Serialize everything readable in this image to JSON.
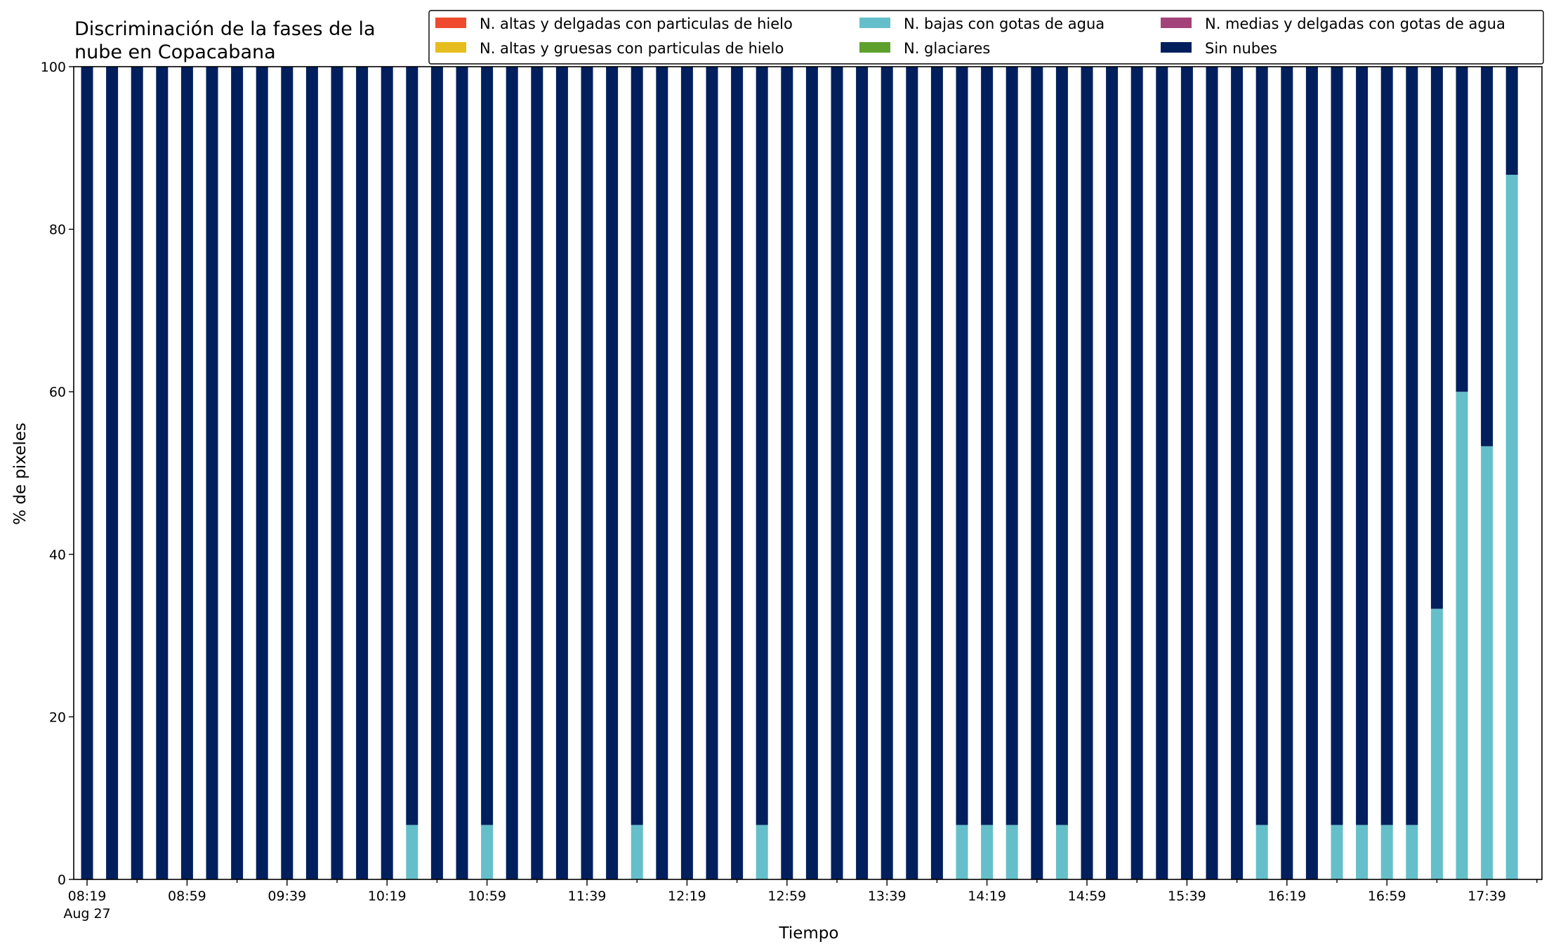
{
  "chart_data": {
    "type": "bar",
    "stacked": true,
    "title_lines": [
      "Discriminación de la fases de la",
      "nube en Copacabana"
    ],
    "xlabel": "Tiempo",
    "ylabel": "% de pixeles",
    "ylim": [
      0,
      100
    ],
    "yticks": [
      "0",
      "20",
      "40",
      "60",
      "80",
      "100"
    ],
    "grid": false,
    "legend_position": "top-right",
    "x_start": "08:19",
    "x_step_minutes": 10,
    "x_date_label": "Aug 27",
    "xtick_labels": [
      "08:19",
      "08:59",
      "09:39",
      "10:19",
      "10:59",
      "11:39",
      "12:19",
      "12:59",
      "13:39",
      "14:19",
      "14:59",
      "15:39",
      "16:19",
      "16:59",
      "17:39"
    ],
    "series": [
      {
        "name": "N. altas y delgadas con particulas de hielo",
        "color": "#ef4a2d",
        "values": [
          0,
          0,
          0,
          0,
          0,
          0,
          0,
          0,
          0,
          0,
          0,
          0,
          0,
          0,
          0,
          0,
          0,
          0,
          0,
          0,
          0,
          0,
          0,
          0,
          0,
          0,
          0,
          0,
          0,
          0,
          0,
          0,
          0,
          0,
          0,
          0,
          0,
          0,
          0,
          0,
          0,
          0,
          0,
          0,
          0,
          0,
          0,
          0,
          0,
          0,
          0,
          0,
          0,
          0,
          0,
          0,
          0,
          0
        ]
      },
      {
        "name": "N. altas y gruesas con particulas de hielo",
        "color": "#e6bd1f",
        "values": [
          0,
          0,
          0,
          0,
          0,
          0,
          0,
          0,
          0,
          0,
          0,
          0,
          0,
          0,
          0,
          0,
          0,
          0,
          0,
          0,
          0,
          0,
          0,
          0,
          0,
          0,
          0,
          0,
          0,
          0,
          0,
          0,
          0,
          0,
          0,
          0,
          0,
          0,
          0,
          0,
          0,
          0,
          0,
          0,
          0,
          0,
          0,
          0,
          0,
          0,
          0,
          0,
          0,
          0,
          0,
          0,
          0,
          0
        ]
      },
      {
        "name": "N. bajas con gotas de agua",
        "color": "#65bfca",
        "values": [
          0,
          0,
          0,
          0,
          0,
          0,
          0,
          0,
          0,
          0,
          0,
          0,
          0,
          6.7,
          0,
          0,
          6.7,
          0,
          0,
          0,
          0,
          0,
          6.7,
          0,
          0,
          0,
          0,
          6.7,
          0,
          0,
          0,
          0,
          0,
          0,
          0,
          6.7,
          6.7,
          6.7,
          0,
          6.7,
          0,
          0,
          0,
          0,
          0,
          0,
          0,
          6.7,
          0,
          0,
          6.7,
          6.7,
          6.7,
          6.7,
          33.3,
          60,
          53.3,
          86.7
        ]
      },
      {
        "name": "N. glaciares",
        "color": "#5ea02c",
        "values": [
          0,
          0,
          0,
          0,
          0,
          0,
          0,
          0,
          0,
          0,
          0,
          0,
          0,
          0,
          0,
          0,
          0,
          0,
          0,
          0,
          0,
          0,
          0,
          0,
          0,
          0,
          0,
          0,
          0,
          0,
          0,
          0,
          0,
          0,
          0,
          0,
          0,
          0,
          0,
          0,
          0,
          0,
          0,
          0,
          0,
          0,
          0,
          0,
          0,
          0,
          0,
          0,
          0,
          0,
          0,
          0,
          0,
          0
        ]
      },
      {
        "name": "N. medias y delgadas con gotas de agua",
        "color": "#a3437a",
        "values": [
          0,
          0,
          0,
          0,
          0,
          0,
          0,
          0,
          0,
          0,
          0,
          0,
          0,
          0,
          0,
          0,
          0,
          0,
          0,
          0,
          0,
          0,
          0,
          0,
          0,
          0,
          0,
          0,
          0,
          0,
          0,
          0,
          0,
          0,
          0,
          0,
          0,
          0,
          0,
          0,
          0,
          0,
          0,
          0,
          0,
          0,
          0,
          0,
          0,
          0,
          0,
          0,
          0,
          0,
          0,
          0,
          0,
          0
        ]
      },
      {
        "name": "Sin nubes",
        "color": "#021f5d",
        "values": [
          100,
          100,
          100,
          100,
          100,
          100,
          100,
          100,
          100,
          100,
          100,
          100,
          100,
          93.3,
          100,
          100,
          93.3,
          100,
          100,
          100,
          100,
          100,
          93.3,
          100,
          100,
          100,
          100,
          93.3,
          100,
          100,
          100,
          100,
          100,
          100,
          100,
          93.3,
          93.3,
          93.3,
          100,
          93.3,
          100,
          100,
          100,
          100,
          100,
          100,
          100,
          93.3,
          100,
          100,
          93.3,
          93.3,
          93.3,
          93.3,
          66.7,
          40,
          46.7,
          13.3
        ]
      }
    ]
  }
}
